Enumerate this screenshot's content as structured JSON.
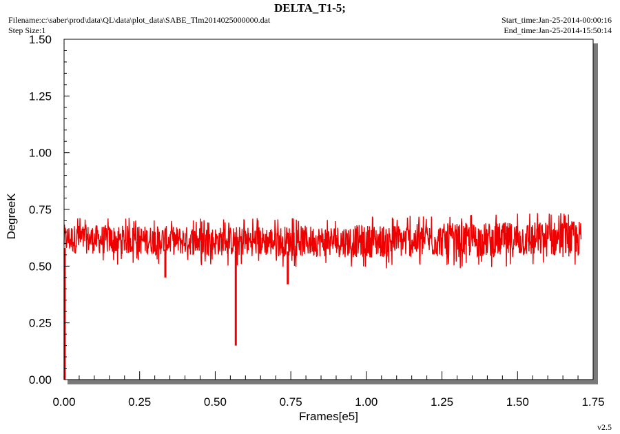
{
  "header": {
    "title": "DELTA_T1-5;",
    "filename": "Filename:c:\\saber\\prod\\data\\QL\\data\\plot_data\\SABE_Tlm2014025000000.dat",
    "step_size": "Step Size:1",
    "start_time": "Start_time:Jan-25-2014-00:00:16",
    "end_time": "End_time:Jan-25-2014-15:50:14"
  },
  "footer": {
    "version": "v2.5"
  },
  "colors": {
    "series": "#ee0000",
    "shadow": "#7a7a7a",
    "frame": "#000000"
  },
  "chart_data": {
    "type": "line",
    "title": "DELTA_T1-5;",
    "xlabel": "Frames[e5]",
    "ylabel": "DegreeK",
    "xlim": [
      0.0,
      1.75
    ],
    "ylim": [
      0.0,
      1.5
    ],
    "x_ticks": [
      "0.00",
      "0.25",
      "0.50",
      "0.75",
      "1.00",
      "1.25",
      "1.50",
      "1.75"
    ],
    "y_ticks": [
      "0.00",
      "0.25",
      "0.50",
      "0.75",
      "1.00",
      "1.25",
      "1.50"
    ],
    "grid": false,
    "series": [
      {
        "x_range": [
          0.0,
          1.71
        ],
        "band_low": [
          [
            0.0,
            0.54
          ],
          [
            0.5,
            0.53
          ],
          [
            1.0,
            0.52
          ],
          [
            1.71,
            0.52
          ]
        ],
        "band_high": [
          [
            0.0,
            0.7
          ],
          [
            0.5,
            0.69
          ],
          [
            1.0,
            0.7
          ],
          [
            1.71,
            0.72
          ]
        ],
        "spikes": [
          {
            "x": 0.002,
            "y": 0.0
          },
          {
            "x": 0.335,
            "y": 0.45
          },
          {
            "x": 0.568,
            "y": 0.15
          },
          {
            "x": 0.74,
            "y": 0.42
          }
        ]
      }
    ]
  }
}
